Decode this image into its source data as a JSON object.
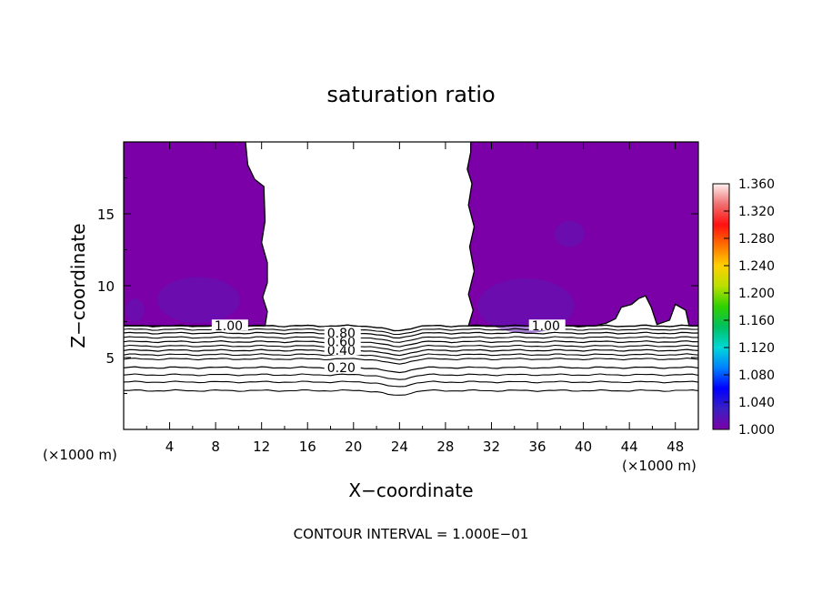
{
  "chart_data": {
    "type": "heatmap",
    "title": "saturation ratio",
    "xlabel": "X−coordinate",
    "ylabel": "Z−coordinate",
    "x_unit_left": "(×1000 m)",
    "x_unit_right": "(×1000 m)",
    "footer": "CONTOUR INTERVAL = 1.000E−01",
    "xlim": [
      0,
      50
    ],
    "ylim": [
      0,
      20
    ],
    "x_ticks": [
      4,
      8,
      12,
      16,
      20,
      24,
      28,
      32,
      36,
      40,
      44,
      48
    ],
    "y_ticks": [
      5,
      10,
      15
    ],
    "colorbar": {
      "min": 1.0,
      "max": 1.36,
      "ticks": [
        "1.000",
        "1.040",
        "1.080",
        "1.120",
        "1.160",
        "1.200",
        "1.240",
        "1.280",
        "1.320",
        "1.360"
      ],
      "stops": [
        "#7b00a8",
        "#3b1fc2",
        "#0000ff",
        "#0080ff",
        "#00d8d8",
        "#00c060",
        "#30d000",
        "#b8e000",
        "#ffd000",
        "#ff7000",
        "#ff1010",
        "#f07070",
        "#fff0f0"
      ]
    },
    "fill_color": "#7b00a8",
    "fill_color_dark": "#5e15b5",
    "contours": [
      {
        "level": 0.2,
        "label": "0.20",
        "label_x": 17.7,
        "z": 4.3
      },
      {
        "level": 0.4,
        "label": "0.40",
        "label_x": 17.7,
        "z": 5.5
      },
      {
        "level": 0.6,
        "label": "0.60",
        "label_x": 17.7,
        "z": 6.1
      },
      {
        "level": 0.8,
        "label": "0.80",
        "label_x": 17.7,
        "z": 6.7
      },
      {
        "level": 1.0,
        "label": "1.00",
        "label_x": 7.9,
        "z": 7.2
      },
      {
        "level": 1.0,
        "label": "1.00",
        "label_x": 35.5,
        "z": 7.2
      }
    ],
    "other_contour_z": [
      2.7,
      3.3,
      3.8,
      4.9,
      5.2,
      5.8,
      6.4,
      6.95
    ]
  }
}
